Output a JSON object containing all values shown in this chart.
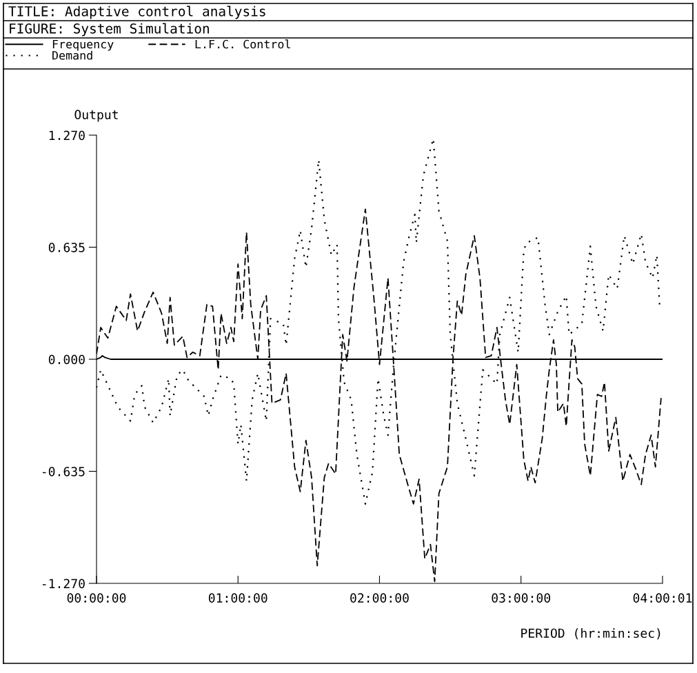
{
  "chart_data": {
    "type": "line",
    "title": "TITLE: Adaptive control analysis",
    "subtitle": "FIGURE: System Simulation",
    "ylabel": "Output",
    "xlabel": "PERIOD (hr:min:sec)",
    "xlim": [
      0,
      4.0003
    ],
    "ylim": [
      -1.27,
      1.27
    ],
    "xticks": [
      {
        "value": 0,
        "label": "00:00:00"
      },
      {
        "value": 1,
        "label": "01:00:00"
      },
      {
        "value": 2,
        "label": "02:00:00"
      },
      {
        "value": 3,
        "label": "03:00:00"
      },
      {
        "value": 4.0003,
        "label": "04:00:01"
      }
    ],
    "yticks": [
      {
        "value": -1.27,
        "label": "-1.270"
      },
      {
        "value": -0.635,
        "label": "-0.635"
      },
      {
        "value": 0,
        "label": "0.000"
      },
      {
        "value": 0.635,
        "label": "0.635"
      },
      {
        "value": 1.27,
        "label": "1.270"
      }
    ],
    "grid": false,
    "legend": "top",
    "marker": "none",
    "series": [
      {
        "name": "Frequency",
        "color": "#000000",
        "line_style": "solid",
        "x": [
          0,
          0.03,
          0.04,
          0.06,
          0.1,
          4.0
        ],
        "values": [
          0,
          0.01,
          0.02,
          0.01,
          0,
          0
        ]
      },
      {
        "name": "L.F.C. Control",
        "color": "#000000",
        "line_style": "dashed",
        "x": [
          0.0,
          0.03,
          0.08,
          0.14,
          0.21,
          0.24,
          0.29,
          0.34,
          0.4,
          0.46,
          0.5,
          0.52,
          0.55,
          0.61,
          0.64,
          0.68,
          0.73,
          0.78,
          0.82,
          0.86,
          0.88,
          0.92,
          0.95,
          0.97,
          1.0,
          1.03,
          1.06,
          1.09,
          1.14,
          1.16,
          1.2,
          1.24,
          1.3,
          1.34,
          1.4,
          1.44,
          1.48,
          1.52,
          1.56,
          1.61,
          1.64,
          1.69,
          1.74,
          1.77,
          1.82,
          1.9,
          1.96,
          2.0,
          2.05,
          2.06,
          2.1,
          2.14,
          2.2,
          2.24,
          2.28,
          2.32,
          2.36,
          2.39,
          2.42,
          2.48,
          2.52,
          2.55,
          2.58,
          2.61,
          2.67,
          2.71,
          2.75,
          2.79,
          2.83,
          2.86,
          2.89,
          2.92,
          2.97,
          3.02,
          3.05,
          3.07,
          3.1,
          3.15,
          3.18,
          3.2,
          3.23,
          3.25,
          3.26,
          3.3,
          3.32,
          3.34,
          3.36,
          3.38,
          3.4,
          3.43,
          3.45,
          3.49,
          3.54,
          3.57,
          3.59,
          3.62,
          3.67,
          3.72,
          3.77,
          3.81,
          3.85,
          3.88,
          3.92,
          3.95,
          3.99
        ],
        "values": [
          0.03,
          0.18,
          0.12,
          0.3,
          0.22,
          0.37,
          0.16,
          0.27,
          0.38,
          0.26,
          0.09,
          0.35,
          0.08,
          0.13,
          0.01,
          0.04,
          0.02,
          0.31,
          0.3,
          -0.06,
          0.26,
          0.09,
          0.18,
          0.1,
          0.54,
          0.23,
          0.72,
          0.31,
          0.0,
          0.28,
          0.36,
          -0.25,
          -0.23,
          -0.08,
          -0.61,
          -0.75,
          -0.46,
          -0.67,
          -1.17,
          -0.67,
          -0.59,
          -0.65,
          0.14,
          -0.01,
          0.41,
          0.85,
          0.35,
          -0.03,
          0.38,
          0.46,
          -0.03,
          -0.54,
          -0.71,
          -0.82,
          -0.68,
          -1.13,
          -1.05,
          -1.26,
          -0.76,
          -0.61,
          0.01,
          0.33,
          0.25,
          0.48,
          0.7,
          0.46,
          0.01,
          0.02,
          0.18,
          -0.03,
          -0.23,
          -0.37,
          -0.03,
          -0.57,
          -0.69,
          -0.61,
          -0.7,
          -0.45,
          -0.2,
          -0.06,
          0.11,
          -0.03,
          -0.3,
          -0.25,
          -0.38,
          -0.13,
          0.11,
          0.07,
          -0.11,
          -0.14,
          -0.48,
          -0.66,
          -0.2,
          -0.21,
          -0.13,
          -0.52,
          -0.33,
          -0.69,
          -0.54,
          -0.62,
          -0.71,
          -0.54,
          -0.43,
          -0.61,
          -0.22
        ]
      },
      {
        "name": "Demand",
        "color": "#000000",
        "line_style": "dotted",
        "x": [
          0.0,
          0.03,
          0.11,
          0.15,
          0.24,
          0.27,
          0.32,
          0.34,
          0.4,
          0.46,
          0.51,
          0.52,
          0.57,
          0.61,
          0.65,
          0.76,
          0.79,
          0.82,
          0.88,
          0.95,
          0.97,
          1.0,
          1.02,
          1.06,
          1.1,
          1.14,
          1.2,
          1.23,
          1.32,
          1.34,
          1.4,
          1.44,
          1.48,
          1.52,
          1.57,
          1.61,
          1.66,
          1.7,
          1.71,
          1.75,
          1.8,
          1.84,
          1.9,
          1.95,
          1.99,
          2.03,
          2.06,
          2.1,
          2.17,
          2.21,
          2.25,
          2.26,
          2.31,
          2.38,
          2.42,
          2.48,
          2.5,
          2.55,
          2.61,
          2.67,
          2.73,
          2.83,
          2.85,
          2.92,
          2.98,
          3.02,
          3.04,
          3.12,
          3.17,
          3.2,
          3.26,
          3.32,
          3.34,
          3.43,
          3.49,
          3.53,
          3.58,
          3.62,
          3.68,
          3.73,
          3.79,
          3.85,
          3.88,
          3.93,
          3.96,
          3.98
        ],
        "values": [
          -0.16,
          -0.06,
          -0.2,
          -0.27,
          -0.35,
          -0.2,
          -0.15,
          -0.27,
          -0.36,
          -0.27,
          -0.11,
          -0.32,
          -0.09,
          -0.06,
          -0.12,
          -0.21,
          -0.32,
          -0.23,
          -0.09,
          -0.11,
          -0.14,
          -0.48,
          -0.37,
          -0.69,
          -0.23,
          -0.08,
          -0.35,
          0.23,
          0.2,
          0.08,
          0.57,
          0.73,
          0.52,
          0.74,
          1.13,
          0.79,
          0.59,
          0.65,
          0.23,
          -0.13,
          -0.23,
          -0.54,
          -0.82,
          -0.64,
          -0.11,
          -0.32,
          -0.43,
          -0.03,
          0.55,
          0.7,
          0.82,
          0.66,
          1.04,
          1.25,
          0.84,
          0.67,
          0.14,
          -0.25,
          -0.45,
          -0.66,
          -0.06,
          -0.14,
          0.14,
          0.35,
          0.04,
          0.62,
          0.66,
          0.69,
          0.31,
          0.14,
          0.27,
          0.36,
          0.14,
          0.2,
          0.64,
          0.3,
          0.16,
          0.48,
          0.4,
          0.7,
          0.54,
          0.71,
          0.55,
          0.46,
          0.59,
          0.3
        ]
      }
    ]
  }
}
